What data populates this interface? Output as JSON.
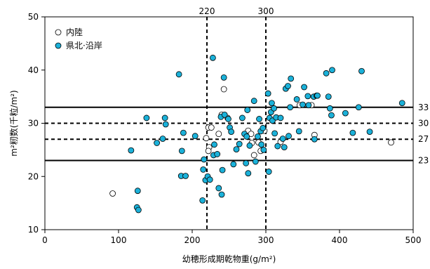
{
  "chart_data": {
    "type": "scatter",
    "xlabel": "幼穂形成期乾物重(g/m²)",
    "ylabel": "m²籾数(千粒/m²)",
    "xlim": [
      0,
      500
    ],
    "ylim": [
      10,
      50
    ],
    "xticks": [
      0,
      100,
      200,
      300,
      400,
      500
    ],
    "yticks": [
      10,
      20,
      30,
      40,
      50
    ],
    "grid": false,
    "legend_position": "top-left",
    "reference_lines": {
      "vertical": [
        {
          "x": 220,
          "label": "220",
          "style": "dashed"
        },
        {
          "x": 300,
          "label": "300",
          "style": "dashed"
        }
      ],
      "horizontal": [
        {
          "y": 33,
          "label": "33",
          "style": "solid"
        },
        {
          "y": 30,
          "label": "30",
          "style": "dashed"
        },
        {
          "y": 27,
          "label": "27",
          "style": "dashed"
        },
        {
          "y": 23,
          "label": "23",
          "style": "solid"
        }
      ]
    },
    "series": [
      {
        "name": "内陸",
        "marker": "open-circle",
        "color": "#ffffff",
        "stroke": "#000000",
        "points": [
          [
            92,
            16.8
          ],
          [
            219,
            27.2
          ],
          [
            222,
            29.2
          ],
          [
            226,
            29.2
          ],
          [
            223,
            25.5
          ],
          [
            222,
            24.8
          ],
          [
            236,
            28.0
          ],
          [
            240,
            31.6
          ],
          [
            243,
            36.4
          ],
          [
            248,
            31.0
          ],
          [
            276,
            28.6
          ],
          [
            280,
            28.0
          ],
          [
            281,
            26.3
          ],
          [
            284,
            24.0
          ],
          [
            290,
            26.4
          ],
          [
            293,
            24.8
          ],
          [
            298,
            28.6
          ],
          [
            320,
            26.5
          ],
          [
            346,
            33.4
          ],
          [
            362,
            33.4
          ],
          [
            366,
            27.8
          ],
          [
            470,
            26.4
          ]
        ]
      },
      {
        "name": "県北·沿岸",
        "marker": "filled-circle",
        "color": "#1bb1d9",
        "stroke": "#000000",
        "points": [
          [
            117,
            24.9
          ],
          [
            125,
            14.2
          ],
          [
            127,
            13.7
          ],
          [
            126,
            17.3
          ],
          [
            138,
            31.0
          ],
          [
            152,
            26.3
          ],
          [
            160,
            27.1
          ],
          [
            163,
            31.0
          ],
          [
            164,
            29.8
          ],
          [
            182,
            39.2
          ],
          [
            185,
            20.1
          ],
          [
            186,
            24.8
          ],
          [
            191,
            20.1
          ],
          [
            188,
            28.2
          ],
          [
            204,
            27.6
          ],
          [
            214,
            15.5
          ],
          [
            215,
            21.3
          ],
          [
            216,
            23.2
          ],
          [
            218,
            19.3
          ],
          [
            221,
            20.0
          ],
          [
            224,
            19.4
          ],
          [
            228,
            42.3
          ],
          [
            229,
            24.0
          ],
          [
            230,
            26.0
          ],
          [
            234,
            24.2
          ],
          [
            236,
            17.8
          ],
          [
            239,
            31.2
          ],
          [
            240,
            16.6
          ],
          [
            241,
            21.2
          ],
          [
            243,
            38.6
          ],
          [
            244,
            31.6
          ],
          [
            249,
            30.8
          ],
          [
            251,
            29.2
          ],
          [
            253,
            28.4
          ],
          [
            256,
            22.3
          ],
          [
            260,
            25.1
          ],
          [
            264,
            26.1
          ],
          [
            268,
            31.0
          ],
          [
            271,
            28.0
          ],
          [
            273,
            22.5
          ],
          [
            274,
            27.5
          ],
          [
            275,
            32.5
          ],
          [
            276,
            20.6
          ],
          [
            278,
            25.8
          ],
          [
            284,
            34.2
          ],
          [
            286,
            22.8
          ],
          [
            289,
            27.5
          ],
          [
            291,
            30.8
          ],
          [
            293,
            28.5
          ],
          [
            294,
            26.0
          ],
          [
            296,
            29.1
          ],
          [
            297,
            25.0
          ],
          [
            303,
            35.6
          ],
          [
            304,
            20.9
          ],
          [
            305,
            31.0
          ],
          [
            307,
            32.1
          ],
          [
            308,
            33.8
          ],
          [
            309,
            30.5
          ],
          [
            311,
            32.8
          ],
          [
            312,
            28.1
          ],
          [
            314,
            31.1
          ],
          [
            316,
            25.7
          ],
          [
            320,
            31.0
          ],
          [
            323,
            27.1
          ],
          [
            325,
            25.5
          ],
          [
            327,
            36.5
          ],
          [
            330,
            37.0
          ],
          [
            331,
            27.6
          ],
          [
            333,
            33.0
          ],
          [
            334,
            38.4
          ],
          [
            342,
            34.5
          ],
          [
            345,
            28.5
          ],
          [
            350,
            33.5
          ],
          [
            352,
            36.8
          ],
          [
            357,
            35.1
          ],
          [
            358,
            33.4
          ],
          [
            365,
            35.0
          ],
          [
            366,
            27.0
          ],
          [
            369,
            35.2
          ],
          [
            370,
            35.2
          ],
          [
            382,
            39.4
          ],
          [
            385,
            35.0
          ],
          [
            387,
            32.8
          ],
          [
            389,
            31.5
          ],
          [
            390,
            40.0
          ],
          [
            408,
            31.9
          ],
          [
            418,
            28.2
          ],
          [
            426,
            33.0
          ],
          [
            430,
            39.8
          ],
          [
            441,
            28.4
          ],
          [
            485,
            33.8
          ]
        ]
      }
    ]
  }
}
